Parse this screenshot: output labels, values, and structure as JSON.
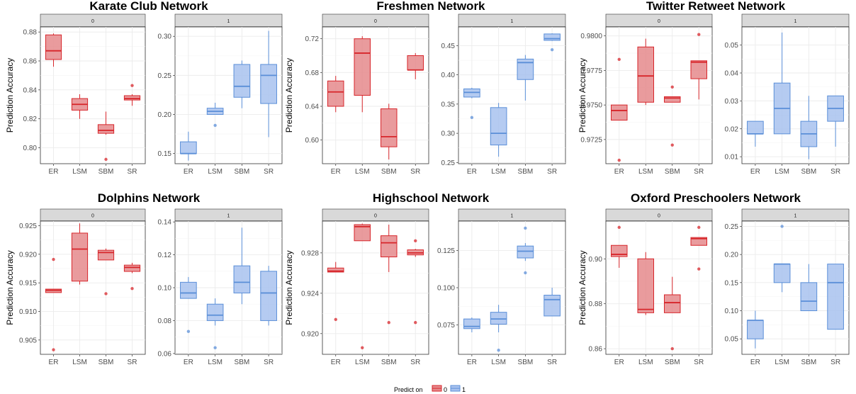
{
  "colors": {
    "0": "#d7262b",
    "1": "#5b8fd8",
    "0_fill": "#e58a8c",
    "1_fill": "#a8c2ee"
  },
  "legend": {
    "title": "Predict on",
    "items": [
      "0",
      "1"
    ]
  },
  "chart_data": [
    {
      "type": "box",
      "title": "Karate Club Network",
      "ylabel": "Prediction Accuracy",
      "categories": [
        "ER",
        "LSM",
        "SBM",
        "SR"
      ],
      "facets": [
        {
          "strip": "0",
          "ylim": [
            0.789,
            0.8835
          ],
          "yticks": [
            "0.80",
            "0.82",
            "0.84",
            "0.86",
            "0.88"
          ],
          "boxes": [
            {
              "q1": 0.861,
              "med": 0.867,
              "q3": 0.878,
              "lo": 0.856,
              "hi": 0.879,
              "out": []
            },
            {
              "q1": 0.826,
              "med": 0.83,
              "q3": 0.834,
              "lo": 0.82,
              "hi": 0.837,
              "out": []
            },
            {
              "q1": 0.81,
              "med": 0.812,
              "q3": 0.816,
              "lo": 0.809,
              "hi": 0.825,
              "out": [
                0.792
              ]
            },
            {
              "q1": 0.833,
              "med": 0.834,
              "q3": 0.836,
              "lo": 0.829,
              "hi": 0.837,
              "out": [
                0.843
              ]
            }
          ]
        },
        {
          "strip": "1",
          "ylim": [
            0.137,
            0.312
          ],
          "yticks": [
            "0.15",
            "0.20",
            "0.25",
            "0.30"
          ],
          "boxes": [
            {
              "q1": 0.15,
              "med": 0.15,
              "q3": 0.165,
              "lo": 0.141,
              "hi": 0.178,
              "out": []
            },
            {
              "q1": 0.2,
              "med": 0.204,
              "q3": 0.208,
              "lo": 0.2,
              "hi": 0.215,
              "out": [
                0.186
              ]
            },
            {
              "q1": 0.222,
              "med": 0.236,
              "q3": 0.264,
              "lo": 0.208,
              "hi": 0.269,
              "out": []
            },
            {
              "q1": 0.214,
              "med": 0.25,
              "q3": 0.264,
              "lo": 0.171,
              "hi": 0.307,
              "out": []
            }
          ]
        }
      ]
    },
    {
      "type": "box",
      "title": "Freshmen Network",
      "ylabel": "Prediction Accuracy",
      "categories": [
        "ER",
        "LSM",
        "SBM",
        "SR"
      ],
      "facets": [
        {
          "strip": "0",
          "ylim": [
            0.572,
            0.734
          ],
          "yticks": [
            "0.60",
            "0.64",
            "0.68",
            "0.72"
          ],
          "boxes": [
            {
              "q1": 0.64,
              "med": 0.657,
              "q3": 0.67,
              "lo": 0.633,
              "hi": 0.676,
              "out": []
            },
            {
              "q1": 0.653,
              "med": 0.703,
              "q3": 0.72,
              "lo": 0.633,
              "hi": 0.723,
              "out": []
            },
            {
              "q1": 0.592,
              "med": 0.604,
              "q3": 0.637,
              "lo": 0.577,
              "hi": 0.643,
              "out": []
            },
            {
              "q1": 0.683,
              "med": 0.683,
              "q3": 0.7,
              "lo": 0.672,
              "hi": 0.703,
              "out": []
            }
          ]
        },
        {
          "strip": "1",
          "ylim": [
            0.248,
            0.482
          ],
          "yticks": [
            "0.25",
            "0.30",
            "0.35",
            "0.40",
            "0.45"
          ],
          "boxes": [
            {
              "q1": 0.362,
              "med": 0.37,
              "q3": 0.376,
              "lo": 0.36,
              "hi": 0.378,
              "out": [
                0.327
              ]
            },
            {
              "q1": 0.28,
              "med": 0.3,
              "q3": 0.344,
              "lo": 0.26,
              "hi": 0.352,
              "out": []
            },
            {
              "q1": 0.392,
              "med": 0.421,
              "q3": 0.427,
              "lo": 0.356,
              "hi": 0.434,
              "out": []
            },
            {
              "q1": 0.459,
              "med": 0.462,
              "q3": 0.47,
              "lo": 0.458,
              "hi": 0.471,
              "out": [
                0.443
              ]
            }
          ]
        }
      ]
    },
    {
      "type": "box",
      "title": "Twitter Retweet Network",
      "ylabel": "Prediction Accuracy",
      "categories": [
        "ER",
        "LSM",
        "SBM",
        "SR"
      ],
      "facets": [
        {
          "strip": "0",
          "ylim": [
            0.97075,
            0.98065
          ],
          "yticks": [
            "0.9725",
            "0.9750",
            "0.9775",
            "0.9800"
          ],
          "boxes": [
            {
              "q1": 0.9739,
              "med": 0.9746,
              "q3": 0.975,
              "lo": 0.9739,
              "hi": 0.975,
              "out": [
                0.9783,
                0.971
              ]
            },
            {
              "q1": 0.9752,
              "med": 0.9771,
              "q3": 0.9792,
              "lo": 0.975,
              "hi": 0.9798,
              "out": []
            },
            {
              "q1": 0.9752,
              "med": 0.9755,
              "q3": 0.9756,
              "lo": 0.9752,
              "hi": 0.9756,
              "out": [
                0.9763,
                0.9721
              ]
            },
            {
              "q1": 0.9769,
              "med": 0.9781,
              "q3": 0.9782,
              "lo": 0.9754,
              "hi": 0.9782,
              "out": [
                0.9801
              ]
            }
          ]
        },
        {
          "strip": "1",
          "ylim": [
            0.0075,
            0.0565
          ],
          "yticks": [
            "0.01",
            "0.02",
            "0.03",
            "0.04",
            "0.05"
          ],
          "boxes": [
            {
              "q1": 0.0182,
              "med": 0.0182,
              "q3": 0.0227,
              "lo": 0.0136,
              "hi": 0.0227,
              "out": []
            },
            {
              "q1": 0.0182,
              "med": 0.0273,
              "q3": 0.0364,
              "lo": 0.0182,
              "hi": 0.0545,
              "out": []
            },
            {
              "q1": 0.0136,
              "med": 0.0182,
              "q3": 0.0227,
              "lo": 0.0091,
              "hi": 0.0318,
              "out": []
            },
            {
              "q1": 0.0227,
              "med": 0.0273,
              "q3": 0.0318,
              "lo": 0.0136,
              "hi": 0.0318,
              "out": []
            }
          ]
        }
      ]
    },
    {
      "type": "box",
      "title": "Dolphins Network",
      "ylabel": "Prediction Accuracy",
      "categories": [
        "ER",
        "LSM",
        "SBM",
        "SR"
      ],
      "facets": [
        {
          "strip": "0",
          "ylim": [
            0.9025,
            0.9258
          ],
          "yticks": [
            "0.905",
            "0.910",
            "0.915",
            "0.920",
            "0.925"
          ],
          "boxes": [
            {
              "q1": 0.9133,
              "med": 0.9137,
              "q3": 0.9139,
              "lo": 0.9133,
              "hi": 0.9139,
              "out": [
                0.9191,
                0.9033
              ]
            },
            {
              "q1": 0.9153,
              "med": 0.9209,
              "q3": 0.9237,
              "lo": 0.9147,
              "hi": 0.9254,
              "out": []
            },
            {
              "q1": 0.919,
              "med": 0.9203,
              "q3": 0.9207,
              "lo": 0.919,
              "hi": 0.921,
              "out": [
                0.9131
              ]
            },
            {
              "q1": 0.917,
              "med": 0.9177,
              "q3": 0.9181,
              "lo": 0.9167,
              "hi": 0.9185,
              "out": [
                0.914
              ]
            }
          ]
        },
        {
          "strip": "1",
          "ylim": [
            0.0595,
            0.1405
          ],
          "yticks": [
            "0.06",
            "0.08",
            "0.10",
            "0.12",
            "0.14"
          ],
          "boxes": [
            {
              "q1": 0.0935,
              "med": 0.0968,
              "q3": 0.1033,
              "lo": 0.0935,
              "hi": 0.1065,
              "out": [
                0.0734
              ]
            },
            {
              "q1": 0.08,
              "med": 0.0833,
              "q3": 0.09,
              "lo": 0.077,
              "hi": 0.0935,
              "out": [
                0.0635
              ]
            },
            {
              "q1": 0.0968,
              "med": 0.1033,
              "q3": 0.1133,
              "lo": 0.09,
              "hi": 0.1365,
              "out": []
            },
            {
              "q1": 0.08,
              "med": 0.0968,
              "q3": 0.11,
              "lo": 0.077,
              "hi": 0.1133,
              "out": []
            }
          ]
        }
      ]
    },
    {
      "type": "box",
      "title": "Highschool Network",
      "ylabel": "Prediction Accuracy",
      "categories": [
        "ER",
        "LSM",
        "SBM",
        "SR"
      ],
      "facets": [
        {
          "strip": "0",
          "ylim": [
            0.91795,
            0.93115
          ],
          "yticks": [
            "0.920",
            "0.924",
            "0.928"
          ],
          "boxes": [
            {
              "q1": 0.9261,
              "med": 0.9262,
              "q3": 0.9265,
              "lo": 0.9261,
              "hi": 0.9271,
              "out": [
                0.9214
              ]
            },
            {
              "q1": 0.9292,
              "med": 0.9306,
              "q3": 0.9308,
              "lo": 0.9292,
              "hi": 0.9309,
              "out": [
                0.9186
              ]
            },
            {
              "q1": 0.9276,
              "med": 0.929,
              "q3": 0.9297,
              "lo": 0.9261,
              "hi": 0.9308,
              "out": [
                0.9211
              ]
            },
            {
              "q1": 0.9278,
              "med": 0.928,
              "q3": 0.9283,
              "lo": 0.9276,
              "hi": 0.9284,
              "out": [
                0.9292,
                0.9211
              ]
            }
          ]
        },
        {
          "strip": "1",
          "ylim": [
            0.05525,
            0.14475
          ],
          "yticks": [
            "0.075",
            "0.100",
            "0.125"
          ],
          "boxes": [
            {
              "q1": 0.0725,
              "med": 0.074,
              "q3": 0.079,
              "lo": 0.07,
              "hi": 0.08,
              "out": []
            },
            {
              "q1": 0.0755,
              "med": 0.079,
              "q3": 0.0835,
              "lo": 0.07,
              "hi": 0.0885,
              "out": [
                0.058
              ]
            },
            {
              "q1": 0.12,
              "med": 0.1245,
              "q3": 0.128,
              "lo": 0.118,
              "hi": 0.13,
              "out": [
                0.14,
                0.11
              ]
            },
            {
              "q1": 0.081,
              "med": 0.092,
              "q3": 0.095,
              "lo": 0.081,
              "hi": 0.1,
              "out": []
            }
          ]
        }
      ]
    },
    {
      "type": "box",
      "title": "Oxford Preschoolers Network",
      "ylabel": "Prediction Accuracy",
      "categories": [
        "ER",
        "LSM",
        "SBM",
        "SR"
      ],
      "facets": [
        {
          "strip": "0",
          "ylim": [
            0.8575,
            0.9168
          ],
          "yticks": [
            "0.86",
            "0.88",
            "0.90"
          ],
          "boxes": [
            {
              "q1": 0.901,
              "med": 0.902,
              "q3": 0.906,
              "lo": 0.896,
              "hi": 0.906,
              "out": [
                0.914
              ]
            },
            {
              "q1": 0.876,
              "med": 0.8775,
              "q3": 0.9,
              "lo": 0.875,
              "hi": 0.903,
              "out": []
            },
            {
              "q1": 0.876,
              "med": 0.8805,
              "q3": 0.884,
              "lo": 0.876,
              "hi": 0.892,
              "out": [
                0.86
              ]
            },
            {
              "q1": 0.906,
              "med": 0.909,
              "q3": 0.9095,
              "lo": 0.906,
              "hi": 0.9095,
              "out": [
                0.914,
                0.8955
              ]
            }
          ]
        },
        {
          "strip": "1",
          "ylim": [
            0.0225,
            0.2594
          ],
          "yticks": [
            "0.05",
            "0.10",
            "0.15",
            "0.20",
            "0.25"
          ],
          "boxes": [
            {
              "q1": 0.05,
              "med": 0.083,
              "q3": 0.083,
              "lo": 0.033,
              "hi": 0.1,
              "out": []
            },
            {
              "q1": 0.15,
              "med": 0.183,
              "q3": 0.183,
              "lo": 0.133,
              "hi": 0.183,
              "out": [
                0.25
              ]
            },
            {
              "q1": 0.1,
              "med": 0.117,
              "q3": 0.15,
              "lo": 0.1,
              "hi": 0.183,
              "out": []
            },
            {
              "q1": 0.067,
              "med": 0.15,
              "q3": 0.183,
              "lo": 0.067,
              "hi": 0.183,
              "out": []
            }
          ]
        }
      ]
    }
  ]
}
